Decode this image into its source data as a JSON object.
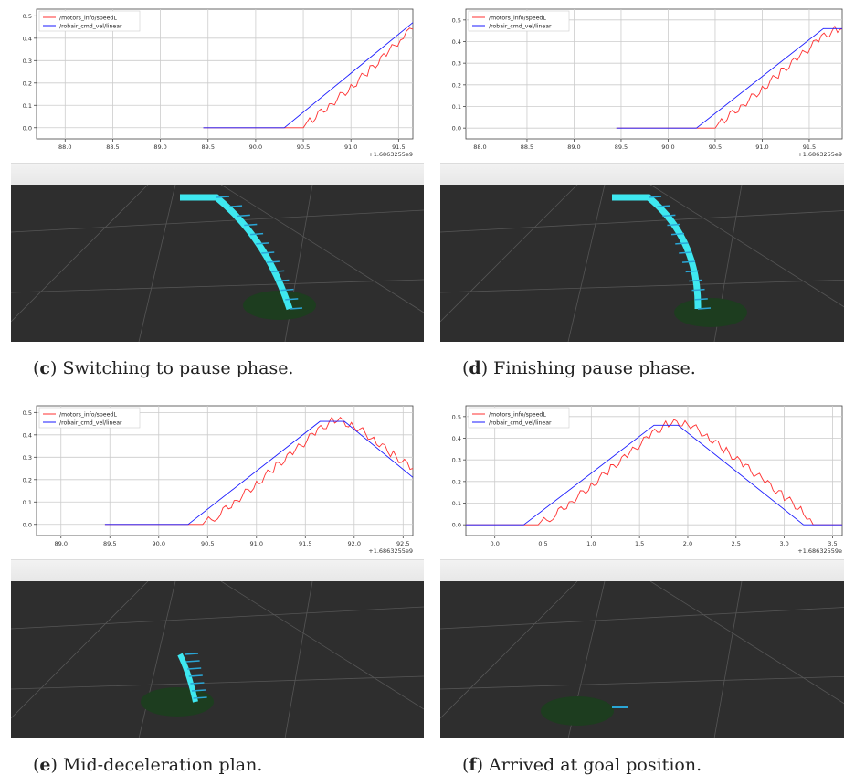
{
  "colors": {
    "speed_series": "#ff3030",
    "cmd_series": "#1a1aff",
    "grid": "#cccccc",
    "scene_bg": "#2e2e2e",
    "trajectory": "#3ee8f0",
    "goal_disc": "#1d3d1f"
  },
  "panels": [
    {
      "caption_letter": "c",
      "caption_text": ") Switching to pause phase.",
      "scene": {
        "has_path": true,
        "path_length": "long"
      }
    },
    {
      "caption_letter": "d",
      "caption_text": ") Finishing pause phase.",
      "scene": {
        "has_path": true,
        "path_length": "long"
      }
    },
    {
      "caption_letter": "e",
      "caption_text": ") Mid-deceleration plan.",
      "scene": {
        "has_path": true,
        "path_length": "short"
      }
    },
    {
      "caption_letter": "f",
      "caption_text": ") Arrived at goal position.",
      "scene": {
        "has_path": false,
        "path_length": "none"
      }
    }
  ],
  "chart_data": [
    {
      "type": "line",
      "xlim": [
        87.7,
        91.65
      ],
      "ylim": [
        -0.05,
        0.53
      ],
      "xticks": [
        "88.0",
        "88.5",
        "89.0",
        "89.5",
        "90.0",
        "90.5",
        "91.0",
        "91.5"
      ],
      "yticks": [
        "0.0",
        "0.1",
        "0.2",
        "0.3",
        "0.4",
        "0.5"
      ],
      "offset_label": "+1.6863255e9",
      "grid": true,
      "legend": "top-left",
      "series": [
        {
          "name": "/motors_info/speedL",
          "color": "#ff3030",
          "noise": true,
          "x": [
            89.45,
            90.5,
            90.6,
            90.8,
            91.0,
            91.2,
            91.4,
            91.55,
            91.65
          ],
          "y": [
            0,
            0,
            0.04,
            0.11,
            0.18,
            0.26,
            0.34,
            0.41,
            0.44
          ]
        },
        {
          "name": "/robair_cmd_vel/linear",
          "color": "#1a1aff",
          "noise": false,
          "x": [
            89.45,
            90.3,
            91.65
          ],
          "y": [
            0,
            0,
            0.47
          ]
        }
      ]
    },
    {
      "type": "line",
      "xlim": [
        87.85,
        91.85
      ],
      "ylim": [
        -0.05,
        0.55
      ],
      "xticks": [
        "88.0",
        "88.5",
        "89.0",
        "89.5",
        "90.0",
        "90.5",
        "91.0",
        "91.5"
      ],
      "yticks": [
        "0.0",
        "0.1",
        "0.2",
        "0.3",
        "0.4",
        "0.5"
      ],
      "offset_label": "+1.6863255e9",
      "grid": true,
      "legend": "top-left",
      "series": [
        {
          "name": "/motors_info/speedL",
          "color": "#ff3030",
          "noise": true,
          "x": [
            89.45,
            90.5,
            90.6,
            90.8,
            91.0,
            91.2,
            91.4,
            91.6,
            91.8,
            91.85
          ],
          "y": [
            0,
            0,
            0.04,
            0.11,
            0.18,
            0.26,
            0.33,
            0.41,
            0.46,
            0.46
          ]
        },
        {
          "name": "/robair_cmd_vel/linear",
          "color": "#1a1aff",
          "noise": false,
          "x": [
            89.45,
            90.3,
            91.65,
            91.85
          ],
          "y": [
            0,
            0,
            0.46,
            0.46
          ]
        }
      ]
    },
    {
      "type": "line",
      "xlim": [
        88.75,
        92.6
      ],
      "ylim": [
        -0.05,
        0.53
      ],
      "xticks": [
        "89.0",
        "89.5",
        "90.0",
        "90.5",
        "91.0",
        "91.5",
        "92.0",
        "92.5"
      ],
      "yticks": [
        "0.0",
        "0.1",
        "0.2",
        "0.3",
        "0.4",
        "0.5"
      ],
      "offset_label": "+1.6863255e9",
      "grid": true,
      "legend": "top-left",
      "series": [
        {
          "name": "/motors_info/speedL",
          "color": "#ff3030",
          "noise": true,
          "x": [
            89.45,
            90.45,
            90.6,
            90.8,
            91.0,
            91.2,
            91.4,
            91.6,
            91.8,
            92.0,
            92.2,
            92.4,
            92.6
          ],
          "y": [
            0,
            0,
            0.04,
            0.11,
            0.18,
            0.26,
            0.33,
            0.41,
            0.47,
            0.44,
            0.38,
            0.31,
            0.25
          ]
        },
        {
          "name": "/robair_cmd_vel/linear",
          "color": "#1a1aff",
          "noise": false,
          "x": [
            89.45,
            90.3,
            91.65,
            91.9,
            92.6
          ],
          "y": [
            0,
            0,
            0.46,
            0.46,
            0.21
          ]
        }
      ]
    },
    {
      "type": "line",
      "xlim": [
        -0.3,
        3.6
      ],
      "ylim": [
        -0.05,
        0.55
      ],
      "xticks": [
        "0.0",
        "0.5",
        "1.0",
        "1.5",
        "2.0",
        "2.5",
        "3.0",
        "3.5"
      ],
      "yticks": [
        "0.0",
        "0.1",
        "0.2",
        "0.3",
        "0.4",
        "0.5"
      ],
      "offset_label": "+1.68632559e",
      "grid": true,
      "legend": "top-left",
      "series": [
        {
          "name": "/motors_info/speedL",
          "color": "#ff3030",
          "noise": true,
          "x": [
            -0.3,
            0.45,
            0.6,
            0.8,
            1.0,
            1.2,
            1.4,
            1.6,
            1.8,
            2.0,
            2.2,
            2.4,
            2.6,
            2.8,
            3.0,
            3.2,
            3.3,
            3.6
          ],
          "y": [
            0,
            0,
            0.04,
            0.11,
            0.18,
            0.26,
            0.33,
            0.41,
            0.47,
            0.47,
            0.41,
            0.34,
            0.27,
            0.2,
            0.13,
            0.06,
            0,
            0
          ]
        },
        {
          "name": "/robair_cmd_vel/linear",
          "color": "#1a1aff",
          "noise": false,
          "x": [
            -0.3,
            0.3,
            1.65,
            1.9,
            3.2,
            3.6
          ],
          "y": [
            0,
            0,
            0.46,
            0.46,
            0,
            0
          ]
        }
      ]
    }
  ]
}
